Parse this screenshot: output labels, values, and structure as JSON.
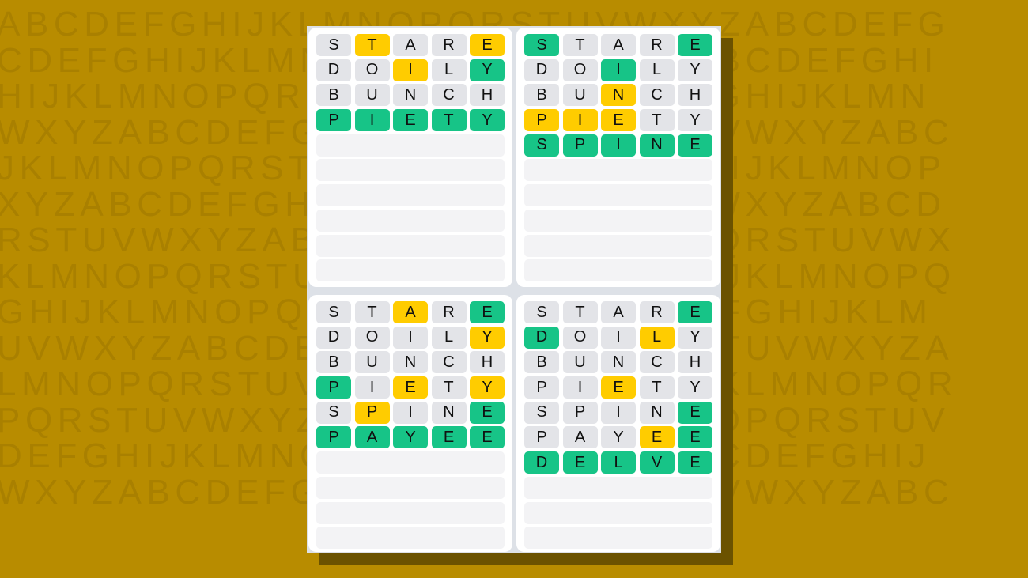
{
  "background_letters": [
    "ABCDEFGHIJKLMNOPQRSTUVWXYZABCDEFG",
    "CDEFGHIJKLMNOPQRSTUVWXYZABCDEFGHI",
    "HIJKLMNOPQRSTUVWXYZABCDEFGHIJKLMN",
    "WXYZABCDEFGHIJKLMNOPQRSTUVWXYZABC",
    "JKLMNOPQRSTUVWXYZABCDEFGHIJKLMNOP",
    "XYZABCDEFGHIJKLMNOPQRSTUVWXYZABCD",
    "RSTUVWXYZABCDEFGHIJKLMNOPQRSTUVWX",
    "KLMNOPQRSTUVWXYZABCDEFGHIJKLMNOPQ",
    "GHIJKLMNOPQRSTUVWXYZABCDEFGHIJKLM",
    "UVWXYZABCDEFGHIJKLMNOPQRSTUVWXYZA",
    "LMNOPQRSTUVWXYZABCDEFGHIJKLMNOPQR",
    "PQRSTUVWXYZABCDEFGHIJKLMNOPQRSTUV",
    "DEFGHIJKLMNOPQRSTUVWXYZABCDEFGHIJ",
    "WXYZABCDEFGHIJKLMNOPQRSTUVWXYZABC"
  ],
  "colors": {
    "correct": "#17c487",
    "present": "#ffcc00",
    "absent": "#e3e4e8",
    "empty": "#f3f3f5",
    "background": "#b88c00"
  },
  "total_rows": 10,
  "boards": [
    {
      "rows": [
        {
          "letters": [
            "S",
            "T",
            "A",
            "R",
            "E"
          ],
          "states": "xyxxy"
        },
        {
          "letters": [
            "D",
            "O",
            "I",
            "L",
            "Y"
          ],
          "states": "xxyxg"
        },
        {
          "letters": [
            "B",
            "U",
            "N",
            "C",
            "H"
          ],
          "states": "xxxxx"
        },
        {
          "letters": [
            "P",
            "I",
            "E",
            "T",
            "Y"
          ],
          "states": "ggggg"
        }
      ]
    },
    {
      "rows": [
        {
          "letters": [
            "S",
            "T",
            "A",
            "R",
            "E"
          ],
          "states": "gxxxg"
        },
        {
          "letters": [
            "D",
            "O",
            "I",
            "L",
            "Y"
          ],
          "states": "xxgxx"
        },
        {
          "letters": [
            "B",
            "U",
            "N",
            "C",
            "H"
          ],
          "states": "xxyxx"
        },
        {
          "letters": [
            "P",
            "I",
            "E",
            "T",
            "Y"
          ],
          "states": "yyyxx"
        },
        {
          "letters": [
            "S",
            "P",
            "I",
            "N",
            "E"
          ],
          "states": "ggggg"
        }
      ]
    },
    {
      "rows": [
        {
          "letters": [
            "S",
            "T",
            "A",
            "R",
            "E"
          ],
          "states": "xxyxg"
        },
        {
          "letters": [
            "D",
            "O",
            "I",
            "L",
            "Y"
          ],
          "states": "xxxxy"
        },
        {
          "letters": [
            "B",
            "U",
            "N",
            "C",
            "H"
          ],
          "states": "xxxxx"
        },
        {
          "letters": [
            "P",
            "I",
            "E",
            "T",
            "Y"
          ],
          "states": "gxyxy"
        },
        {
          "letters": [
            "S",
            "P",
            "I",
            "N",
            "E"
          ],
          "states": "xyxxg"
        },
        {
          "letters": [
            "P",
            "A",
            "Y",
            "E",
            "E"
          ],
          "states": "ggggg"
        }
      ]
    },
    {
      "rows": [
        {
          "letters": [
            "S",
            "T",
            "A",
            "R",
            "E"
          ],
          "states": "xxxxg"
        },
        {
          "letters": [
            "D",
            "O",
            "I",
            "L",
            "Y"
          ],
          "states": "gxxyx"
        },
        {
          "letters": [
            "B",
            "U",
            "N",
            "C",
            "H"
          ],
          "states": "xxxxx"
        },
        {
          "letters": [
            "P",
            "I",
            "E",
            "T",
            "Y"
          ],
          "states": "xxyxx"
        },
        {
          "letters": [
            "S",
            "P",
            "I",
            "N",
            "E"
          ],
          "states": "xxxxg"
        },
        {
          "letters": [
            "P",
            "A",
            "Y",
            "E",
            "E"
          ],
          "states": "xxxyg"
        },
        {
          "letters": [
            "D",
            "E",
            "L",
            "V",
            "E"
          ],
          "states": "ggggg"
        }
      ]
    }
  ]
}
